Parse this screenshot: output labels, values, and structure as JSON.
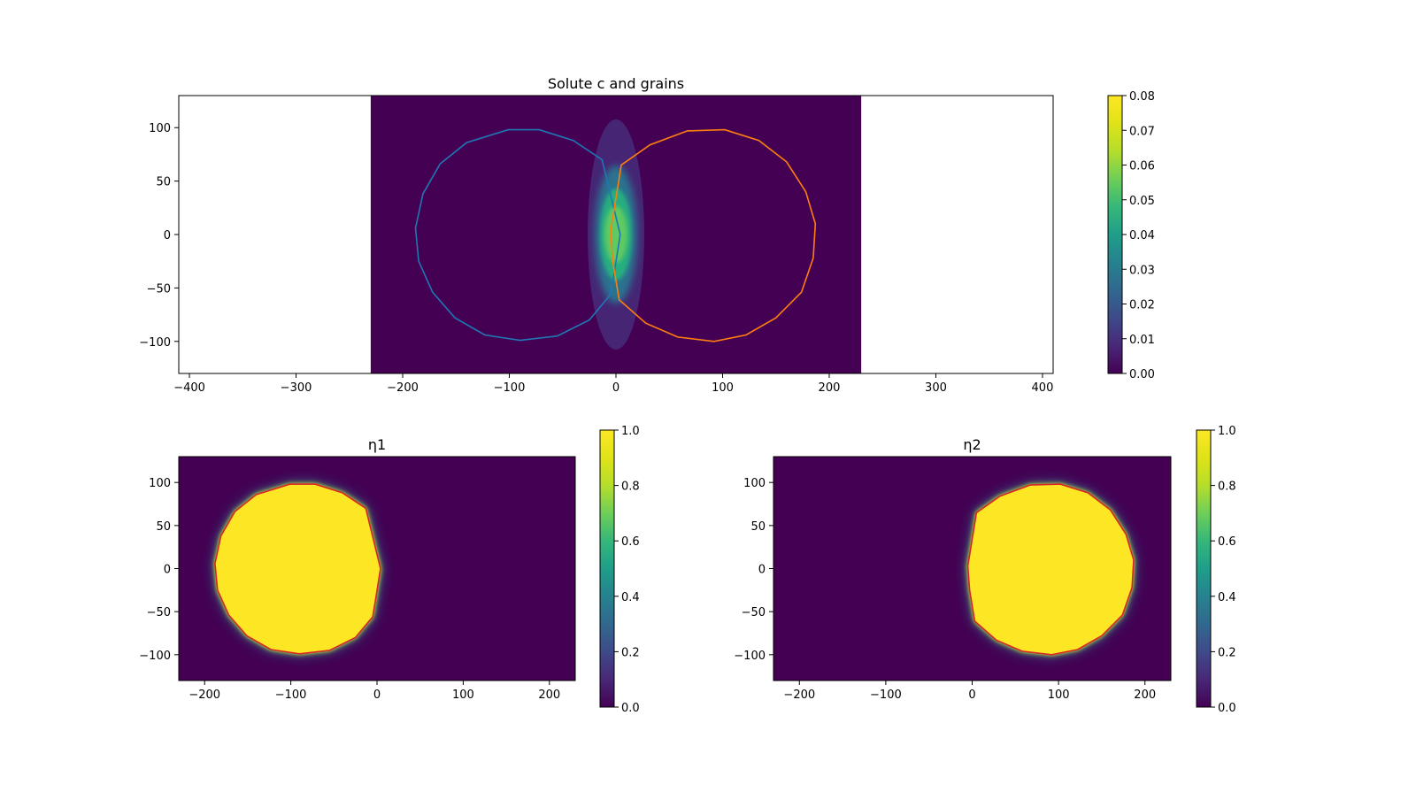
{
  "chart_data": [
    {
      "type": "heatmap",
      "title": "Solute c and grains",
      "xlim": [
        -410,
        410
      ],
      "ylim": [
        -130,
        130
      ],
      "image_extent": {
        "x": [
          -230,
          230
        ],
        "y": [
          -130,
          130
        ]
      },
      "xticks": [
        -400,
        -300,
        -200,
        -100,
        0,
        100,
        200,
        300,
        400
      ],
      "yticks": [
        -100,
        -50,
        0,
        50,
        100
      ],
      "colormap": "viridis",
      "colorbar": {
        "min": 0.0,
        "max": 0.08,
        "ticks": [
          "0.00",
          "0.01",
          "0.02",
          "0.03",
          "0.04",
          "0.05",
          "0.06",
          "0.07",
          "0.08"
        ]
      },
      "field": {
        "description_values": {
          "peak_c": 0.062,
          "peak_x": 0,
          "peak_y": 0
        }
      },
      "contours": [
        {
          "color": "#1f77b4",
          "points": [
            [
              4,
              0
            ],
            [
              -13,
              70
            ],
            [
              -40,
              88
            ],
            [
              -72,
              98
            ],
            [
              -101,
              98
            ],
            [
              -140,
              86
            ],
            [
              -165,
              66
            ],
            [
              -181,
              38
            ],
            [
              -188,
              6
            ],
            [
              -185,
              -25
            ],
            [
              -172,
              -54
            ],
            [
              -151,
              -78
            ],
            [
              -123,
              -94
            ],
            [
              -90,
              -99
            ],
            [
              -55,
              -95
            ],
            [
              -25,
              -80
            ],
            [
              -5,
              -56
            ],
            [
              -1,
              -32
            ],
            [
              4,
              0
            ]
          ]
        },
        {
          "color": "#ff7f0e",
          "points": [
            [
              -5,
              3
            ],
            [
              5,
              65
            ],
            [
              32,
              84
            ],
            [
              67,
              97
            ],
            [
              102,
              98
            ],
            [
              134,
              88
            ],
            [
              160,
              68
            ],
            [
              178,
              40
            ],
            [
              187,
              10
            ],
            [
              185,
              -22
            ],
            [
              174,
              -54
            ],
            [
              150,
              -78
            ],
            [
              122,
              -94
            ],
            [
              92,
              -100
            ],
            [
              58,
              -96
            ],
            [
              28,
              -83
            ],
            [
              3,
              -61
            ],
            [
              -3,
              -25
            ],
            [
              -5,
              3
            ]
          ]
        }
      ]
    },
    {
      "type": "heatmap",
      "title": "η1",
      "xlim": [
        -230,
        230
      ],
      "ylim": [
        -130,
        130
      ],
      "xticks": [
        -200,
        -100,
        0,
        100,
        200
      ],
      "yticks": [
        -100,
        -50,
        0,
        50,
        100
      ],
      "colormap": "viridis",
      "colorbar": {
        "min": 0.0,
        "max": 1.0,
        "ticks": [
          "0.0",
          "0.2",
          "0.4",
          "0.6",
          "0.8",
          "1.0"
        ]
      },
      "contour_color": "#d62728"
    },
    {
      "type": "heatmap",
      "title": "η2",
      "xlim": [
        -230,
        230
      ],
      "ylim": [
        -130,
        130
      ],
      "xticks": [
        -200,
        -100,
        0,
        100,
        200
      ],
      "yticks": [
        -100,
        -50,
        0,
        50,
        100
      ],
      "colormap": "viridis",
      "colorbar": {
        "min": 0.0,
        "max": 1.0,
        "ticks": [
          "0.0",
          "0.2",
          "0.4",
          "0.6",
          "0.8",
          "1.0"
        ]
      },
      "contour_color": "#d62728"
    }
  ],
  "colors": {
    "viridis_low": "#440154",
    "viridis_high": "#fde725",
    "grain1": "#1f77b4",
    "grain2": "#ff7f0e",
    "eta_contour": "#d62728"
  }
}
